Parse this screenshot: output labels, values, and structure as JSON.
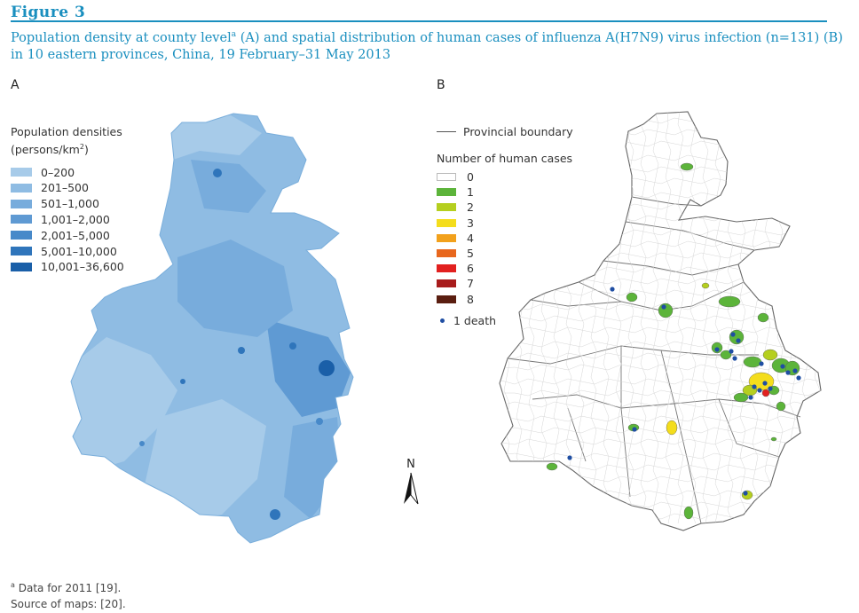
{
  "figure": {
    "label": "Figure 3",
    "caption_part1": "Population density at county level",
    "caption_sup": "a",
    "caption_part2": " (A) and spatial distribution of human cases of influenza A(H7N9) virus infection (n=131) (B) in 10 eastern provinces, China, 19 February–31 May 2013"
  },
  "panel_a": {
    "letter": "A",
    "legend_title_line1": "Population densities",
    "legend_title_line2": "(persons/km",
    "legend_title_sup": "2",
    "legend_title_close": ")",
    "legend": [
      {
        "label": "0–200",
        "color": "#a7cbe9"
      },
      {
        "label": "201–500",
        "color": "#8fbce3"
      },
      {
        "label": "501–1,000",
        "color": "#78acdc"
      },
      {
        "label": "1,001–2,000",
        "color": "#5f9ad3"
      },
      {
        "label": "2,001–5,000",
        "color": "#4789c9"
      },
      {
        "label": "5,001–10,000",
        "color": "#2f75bb"
      },
      {
        "label": "10,001–36,600",
        "color": "#1a5fa8"
      }
    ]
  },
  "panel_b": {
    "letter": "B",
    "boundary_label": "Provincial boundary",
    "cases_title": "Number of human cases",
    "legend": [
      {
        "label": "0",
        "color": "#ffffff"
      },
      {
        "label": "1",
        "color": "#5cb43a"
      },
      {
        "label": "2",
        "color": "#b5cf1f"
      },
      {
        "label": "3",
        "color": "#f4dd1c"
      },
      {
        "label": "4",
        "color": "#f2a11c"
      },
      {
        "label": "5",
        "color": "#e8671d"
      },
      {
        "label": "6",
        "color": "#e2201f"
      },
      {
        "label": "7",
        "color": "#a81c1c"
      },
      {
        "label": "8",
        "color": "#5a1e10"
      }
    ],
    "death_label": "1 death",
    "death_color": "#1f4ea3"
  },
  "north_arrow": {
    "label": "N"
  },
  "notes": {
    "footnote_marker": "a",
    "footnote": " Data for 2011 [19].",
    "source": "Source of maps: [20]."
  }
}
